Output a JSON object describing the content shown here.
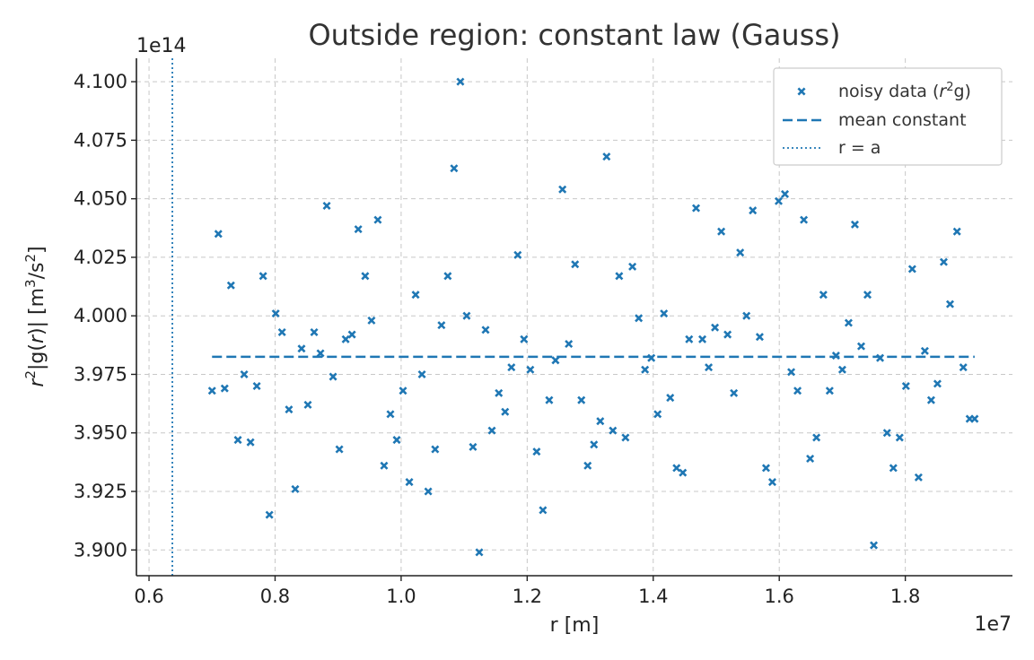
{
  "chart_data": {
    "type": "scatter",
    "title": "Outside region: constant law (Gauss)",
    "xlabel": "r [m]",
    "ylabel_parts": [
      "r",
      "2",
      "|g(r)| [m",
      "3",
      "/s",
      "2",
      "]"
    ],
    "x_offset_label": "1e7",
    "y_offset_label": "1e14",
    "xlim": [
      0.58,
      1.97
    ],
    "ylim": [
      3.889,
      4.11
    ],
    "x_ticks": [
      0.6,
      0.8,
      1.0,
      1.2,
      1.4,
      1.6,
      1.8
    ],
    "x_tick_labels": [
      "0.6",
      "0.8",
      "1.0",
      "1.2",
      "1.4",
      "1.6",
      "1.8"
    ],
    "y_ticks": [
      3.9,
      3.925,
      3.95,
      3.975,
      4.0,
      4.025,
      4.05,
      4.075,
      4.1
    ],
    "y_tick_labels": [
      "3.900",
      "3.925",
      "3.950",
      "3.975",
      "4.000",
      "4.025",
      "4.050",
      "4.075",
      "4.100"
    ],
    "grid": true,
    "legend_position": "top-right",
    "colors": {
      "data": "#1f77b4",
      "grid": "#c8c8c8",
      "axis": "#222222"
    },
    "series": [
      {
        "name": "noisy data (r²g)",
        "legend_parts": [
          "noisy data (",
          "r",
          "2",
          "g)"
        ],
        "kind": "scatter",
        "x": [
          0.7,
          0.71,
          0.72,
          0.73,
          0.741,
          0.751,
          0.761,
          0.771,
          0.781,
          0.791,
          0.801,
          0.811,
          0.822,
          0.832,
          0.842,
          0.852,
          0.862,
          0.872,
          0.882,
          0.892,
          0.902,
          0.912,
          0.922,
          0.932,
          0.943,
          0.953,
          0.963,
          0.973,
          0.983,
          0.993,
          1.003,
          1.013,
          1.023,
          1.033,
          1.043,
          1.054,
          1.064,
          1.074,
          1.084,
          1.094,
          1.104,
          1.114,
          1.124,
          1.134,
          1.144,
          1.155,
          1.165,
          1.175,
          1.185,
          1.195,
          1.205,
          1.215,
          1.225,
          1.235,
          1.245,
          1.256,
          1.266,
          1.276,
          1.286,
          1.296,
          1.306,
          1.316,
          1.326,
          1.336,
          1.346,
          1.356,
          1.367,
          1.377,
          1.387,
          1.397,
          1.407,
          1.417,
          1.427,
          1.437,
          1.447,
          1.457,
          1.468,
          1.478,
          1.488,
          1.498,
          1.508,
          1.518,
          1.528,
          1.538,
          1.548,
          1.558,
          1.569,
          1.579,
          1.589,
          1.599,
          1.609,
          1.619,
          1.629,
          1.639,
          1.649,
          1.659,
          1.67,
          1.68,
          1.69,
          1.7,
          1.71,
          1.72,
          1.73,
          1.74,
          1.75,
          1.76,
          1.771,
          1.781,
          1.791,
          1.801,
          1.811,
          1.821,
          1.831,
          1.841,
          1.851,
          1.861,
          1.871,
          1.882,
          1.892,
          1.902,
          1.91
        ],
        "y": [
          3.968,
          4.035,
          3.969,
          4.013,
          3.947,
          3.975,
          3.946,
          3.97,
          4.017,
          3.915,
          4.001,
          3.993,
          3.96,
          3.926,
          3.986,
          3.962,
          3.993,
          3.984,
          4.047,
          3.974,
          3.943,
          3.99,
          3.992,
          4.037,
          4.017,
          3.998,
          4.041,
          3.936,
          3.958,
          3.947,
          3.968,
          3.929,
          4.009,
          3.975,
          3.925,
          3.943,
          3.996,
          4.017,
          4.063,
          4.1,
          4.0,
          3.944,
          3.899,
          3.994,
          3.951,
          3.967,
          3.959,
          3.978,
          4.026,
          3.99,
          3.977,
          3.942,
          3.917,
          3.964,
          3.981,
          4.054,
          3.988,
          4.022,
          3.964,
          3.936,
          3.945,
          3.955,
          4.068,
          3.951,
          4.017,
          3.948,
          4.021,
          3.999,
          3.977,
          3.982,
          3.958,
          4.001,
          3.965,
          3.935,
          3.933,
          3.99,
          4.046,
          3.99,
          3.978,
          3.995,
          4.036,
          3.992,
          3.967,
          4.027,
          4.0,
          4.045,
          3.991,
          3.935,
          3.929,
          4.049,
          4.052,
          3.976,
          3.968,
          4.041,
          3.939,
          3.948,
          4.009,
          3.968,
          3.983,
          3.977,
          3.997,
          4.039,
          3.987,
          4.009,
          3.902,
          3.982,
          3.95,
          3.935,
          3.948,
          3.97,
          4.02,
          3.931,
          3.985,
          3.964,
          3.971,
          4.023,
          4.005,
          4.036,
          3.978,
          3.956,
          3.956
        ]
      },
      {
        "name": "mean constant",
        "kind": "hline",
        "y": 3.9825,
        "x_range": [
          0.7,
          1.91
        ]
      },
      {
        "name": "r = a",
        "kind": "vline",
        "x": 0.637
      }
    ]
  }
}
